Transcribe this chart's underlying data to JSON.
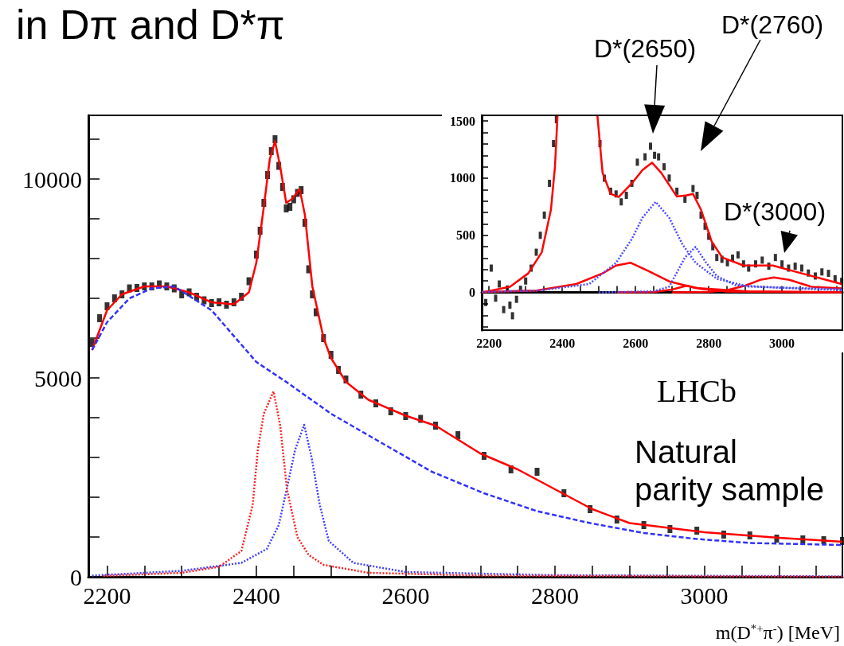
{
  "chart_data": [
    {
      "type": "line",
      "title": "in Dπ and D*π",
      "xlabel": "m(D$^{*+}$π$^{-}$) [MeV]",
      "xlim": [
        2175,
        3185
      ],
      "ylim": [
        0,
        11600
      ],
      "xticks": [
        2200,
        {
          "value": 2250,
          "label": null
        },
        {
          "value": 2300,
          "label": null
        },
        {
          "value": 2350,
          "label": null
        },
        2400,
        {
          "value": 2450,
          "label": null
        },
        {
          "value": 2500,
          "label": null
        },
        {
          "value": 2550,
          "label": null
        },
        2600,
        {
          "value": 2650,
          "label": null
        },
        {
          "value": 2700,
          "label": null
        },
        {
          "value": 2750,
          "label": null
        },
        2800,
        {
          "value": 2850,
          "label": null
        },
        {
          "value": 2900,
          "label": null
        },
        {
          "value": 2950,
          "label": null
        },
        3000,
        {
          "value": 3050,
          "label": null
        },
        {
          "value": 3100,
          "label": null
        },
        {
          "value": 3150,
          "label": null
        }
      ],
      "yticks": [
        0,
        {
          "value": 1000,
          "label": null
        },
        {
          "value": 2000,
          "label": null
        },
        {
          "value": 3000,
          "label": null
        },
        {
          "value": 4000,
          "label": null
        },
        5000,
        {
          "value": 6000,
          "label": null
        },
        {
          "value": 7000,
          "label": null
        },
        {
          "value": 8000,
          "label": null
        },
        {
          "value": 9000,
          "label": null
        },
        10000,
        {
          "value": 11000,
          "label": null
        }
      ],
      "annotations": [
        "LHCb",
        "Natural parity sample"
      ],
      "series": [
        {
          "color": "#3030ff",
          "line_style": "dashed",
          "marker": "none",
          "x": [
            2180,
            2200,
            2230,
            2260,
            2290,
            2340,
            2400,
            2440,
            2500,
            2560,
            2634,
            2705,
            2776,
            2847,
            2919,
            2990,
            3061,
            3185
          ],
          "values": [
            5700,
            6400,
            7000,
            7250,
            7300,
            6700,
            5400,
            4900,
            4100,
            3450,
            2650,
            2100,
            1650,
            1350,
            1100,
            950,
            850,
            800
          ]
        },
        {
          "color": "#4040ff",
          "line_style": "dotted",
          "marker": "none",
          "x": [
            2180,
            2300,
            2380,
            2414,
            2430,
            2439,
            2452,
            2464,
            2474,
            2485,
            2497,
            2530,
            2600,
            2800,
            3185
          ],
          "values": [
            30,
            150,
            350,
            700,
            1300,
            2060,
            3200,
            3820,
            3000,
            1800,
            900,
            350,
            120,
            40,
            10
          ]
        },
        {
          "color": "#ff2020",
          "line_style": "dotted",
          "marker": "none",
          "x": [
            2195,
            2300,
            2350,
            2380,
            2395,
            2402,
            2410,
            2423,
            2432,
            2441,
            2455,
            2470,
            2490,
            2550,
            2700,
            3185
          ],
          "values": [
            20,
            100,
            250,
            650,
            1800,
            3200,
            4100,
            4660,
            3800,
            2200,
            1000,
            550,
            300,
            100,
            30,
            0
          ]
        },
        {
          "color": "#ff0000",
          "line_style": "solid",
          "marker": "none",
          "x": [
            2180,
            2200,
            2220,
            2250,
            2280,
            2310,
            2340,
            2370,
            2390,
            2400,
            2410,
            2418,
            2425,
            2432,
            2440,
            2448,
            2458,
            2465,
            2475,
            2490,
            2500,
            2520,
            2550,
            2600,
            2640,
            2700,
            2750,
            2800,
            2850,
            2900,
            3000,
            3100,
            3185
          ],
          "values": [
            5700,
            6700,
            7100,
            7300,
            7300,
            7150,
            6900,
            6850,
            7150,
            7900,
            9300,
            10500,
            10950,
            10300,
            9400,
            9500,
            9750,
            9100,
            7300,
            6000,
            5500,
            4900,
            4450,
            4050,
            3800,
            3100,
            2700,
            2200,
            1700,
            1350,
            1120,
            980,
            880
          ]
        },
        {
          "type": "scatter",
          "color": "#000000",
          "marker": "square",
          "x": [
            2180,
            2190,
            2200,
            2210,
            2220,
            2230,
            2240,
            2250,
            2260,
            2270,
            2280,
            2290,
            2300,
            2310,
            2320,
            2330,
            2340,
            2350,
            2360,
            2370,
            2380,
            2390,
            2400,
            2405,
            2410,
            2415,
            2420,
            2425,
            2430,
            2435,
            2440,
            2445,
            2450,
            2455,
            2460,
            2465,
            2470,
            2475,
            2480,
            2490,
            2500,
            2510,
            2520,
            2540,
            2560,
            2580,
            2600,
            2620,
            2640,
            2670,
            2705,
            2741,
            2776,
            2812,
            2847,
            2883,
            2919,
            2954,
            2990,
            3026,
            3061,
            3097,
            3132,
            3160,
            3185
          ],
          "values": [
            5880,
            6500,
            6800,
            7000,
            7100,
            7250,
            7260,
            7300,
            7300,
            7350,
            7300,
            7250,
            7100,
            7150,
            7040,
            6950,
            6880,
            6900,
            6840,
            6900,
            7040,
            7430,
            8100,
            8700,
            9400,
            10100,
            10700,
            11000,
            10330,
            9800,
            9260,
            9300,
            9490,
            9650,
            9720,
            8900,
            7730,
            7100,
            6650,
            6000,
            5580,
            5200,
            4960,
            4580,
            4360,
            4160,
            4040,
            3970,
            3800,
            3560,
            3040,
            2700,
            2640,
            2100,
            1700,
            1440,
            1300,
            1200,
            1160,
            1060,
            1040,
            960,
            940,
            920,
            900
          ]
        }
      ]
    },
    {
      "type": "line",
      "xlim": [
        2180,
        3165
      ],
      "ylim": [
        -330,
        1550
      ],
      "xticks": [
        2200,
        {
          "value": 2250,
          "label": null
        },
        {
          "value": 2300,
          "label": null
        },
        {
          "value": 2350,
          "label": null
        },
        2400,
        {
          "value": 2450,
          "label": null
        },
        {
          "value": 2500,
          "label": null
        },
        {
          "value": 2550,
          "label": null
        },
        2600,
        {
          "value": 2650,
          "label": null
        },
        {
          "value": 2700,
          "label": null
        },
        {
          "value": 2750,
          "label": null
        },
        2800,
        {
          "value": 2850,
          "label": null
        },
        {
          "value": 2900,
          "label": null
        },
        {
          "value": 2950,
          "label": null
        },
        3000,
        {
          "value": 3050,
          "label": null
        },
        {
          "value": 3100,
          "label": null
        },
        {
          "value": 3150,
          "label": null
        }
      ],
      "yticks": [
        {
          "value": -300,
          "label": null
        },
        {
          "value": -200,
          "label": null
        },
        {
          "value": -100,
          "label": null
        },
        0,
        {
          "value": 100,
          "label": null
        },
        {
          "value": 200,
          "label": null
        },
        {
          "value": 300,
          "label": null
        },
        {
          "value": 400,
          "label": null
        },
        500,
        {
          "value": 600,
          "label": null
        },
        {
          "value": 700,
          "label": null
        },
        {
          "value": 800,
          "label": null
        },
        {
          "value": 900,
          "label": null
        },
        1000,
        {
          "value": 1100,
          "label": null
        },
        {
          "value": 1200,
          "label": null
        },
        {
          "value": 1300,
          "label": null
        },
        {
          "value": 1400,
          "label": null
        },
        1500
      ],
      "annotations": [
        "D*(2650)",
        "D*(2760)",
        "D*(3000)"
      ],
      "series": [
        {
          "color": "#4b4bff",
          "line_style": "dotted",
          "marker": "none",
          "x": [
            2180,
            2329,
            2474,
            2547,
            2590,
            2619,
            2655,
            2692,
            2728,
            2764,
            2822,
            2909,
            3163
          ],
          "values": [
            5,
            16,
            74,
            260,
            468,
            654,
            793,
            654,
            422,
            260,
            120,
            51,
            28
          ]
        },
        {
          "color": "#4b4bff",
          "line_style": "dotted",
          "marker": "none",
          "x": [
            2500,
            2650,
            2692,
            2735,
            2764,
            2793,
            2822,
            2873,
            3000,
            3163
          ],
          "values": [
            0,
            10,
            51,
            306,
            399,
            260,
            144,
            63,
            40,
            20
          ]
        },
        {
          "color": "#ff0000",
          "line_style": "solid",
          "marker": "none",
          "x": [
            2180,
            2329,
            2438,
            2510,
            2547,
            2587,
            2634,
            2692,
            2764,
            2909,
            3163
          ],
          "values": [
            5,
            16,
            74,
            167,
            236,
            260,
            190,
            97,
            39,
            9,
            2
          ]
        },
        {
          "color": "#ff0000",
          "line_style": "solid",
          "marker": "none",
          "x": [
            2550,
            2650,
            2700,
            2740,
            2780,
            2850,
            3163
          ],
          "values": [
            0,
            5,
            25,
            60,
            30,
            8,
            0
          ]
        },
        {
          "color": "#ff0000",
          "line_style": "solid",
          "marker": "none",
          "x": [
            2700,
            2800,
            2850,
            2900,
            2940,
            2978,
            3020,
            3080,
            3163
          ],
          "values": [
            0,
            5,
            20,
            60,
            110,
            132,
            110,
            50,
            35
          ]
        },
        {
          "type": "scatter",
          "color": "#000000",
          "marker": "square",
          "x": [
            2191,
            2206,
            2218,
            2228,
            2240,
            2250,
            2257,
            2264,
            2275,
            2286,
            2300,
            2315,
            2329,
            2340,
            2351,
            2365,
            2376,
            2384,
            2503,
            2515,
            2532,
            2547,
            2561,
            2575,
            2590,
            2605,
            2626,
            2641,
            2652,
            2663,
            2678,
            2692,
            2713,
            2735,
            2757,
            2768,
            2779,
            2790,
            2800,
            2811,
            2822,
            2836,
            2851,
            2865,
            2880,
            2895,
            2909,
            2928,
            2946,
            2964,
            2982,
            3000,
            3018,
            3036,
            3054,
            3072,
            3091,
            3109,
            3127,
            3145,
            3163
          ],
          "values": [
            -88,
            213,
            -50,
            74,
            -150,
            30,
            -111,
            -204,
            -60,
            28,
            100,
            213,
            352,
            500,
            677,
            955,
            1303,
            1512,
            1303,
            1000,
            886,
            862,
            793,
            850,
            955,
            1140,
            1187,
            1280,
            1200,
            1187,
            1100,
            1001,
            886,
            816,
            909,
            850,
            677,
            580,
            491,
            400,
            306,
            290,
            260,
            300,
            329,
            250,
            213,
            250,
            283,
            230,
            306,
            250,
            213,
            230,
            213,
            170,
            144,
            180,
            167,
            120,
            97
          ]
        },
        {
          "color": "#ff0000",
          "line_style": "solid",
          "marker": "none",
          "x": [
            2180,
            2257,
            2307,
            2344,
            2369,
            2380,
            2387,
            2440,
            2496,
            2510,
            2532,
            2554,
            2590,
            2619,
            2645,
            2670,
            2713,
            2740,
            2757,
            2779,
            2808,
            2837,
            2895,
            2975,
            3054,
            3163
          ],
          "values": [
            0,
            50,
            167,
            352,
            723,
            1100,
            1546,
            null,
            1546,
            1048,
            863,
            835,
            955,
            1071,
            1136,
            1048,
            839,
            850,
            863,
            723,
            445,
            306,
            236,
            236,
            167,
            74
          ]
        }
      ]
    }
  ]
}
